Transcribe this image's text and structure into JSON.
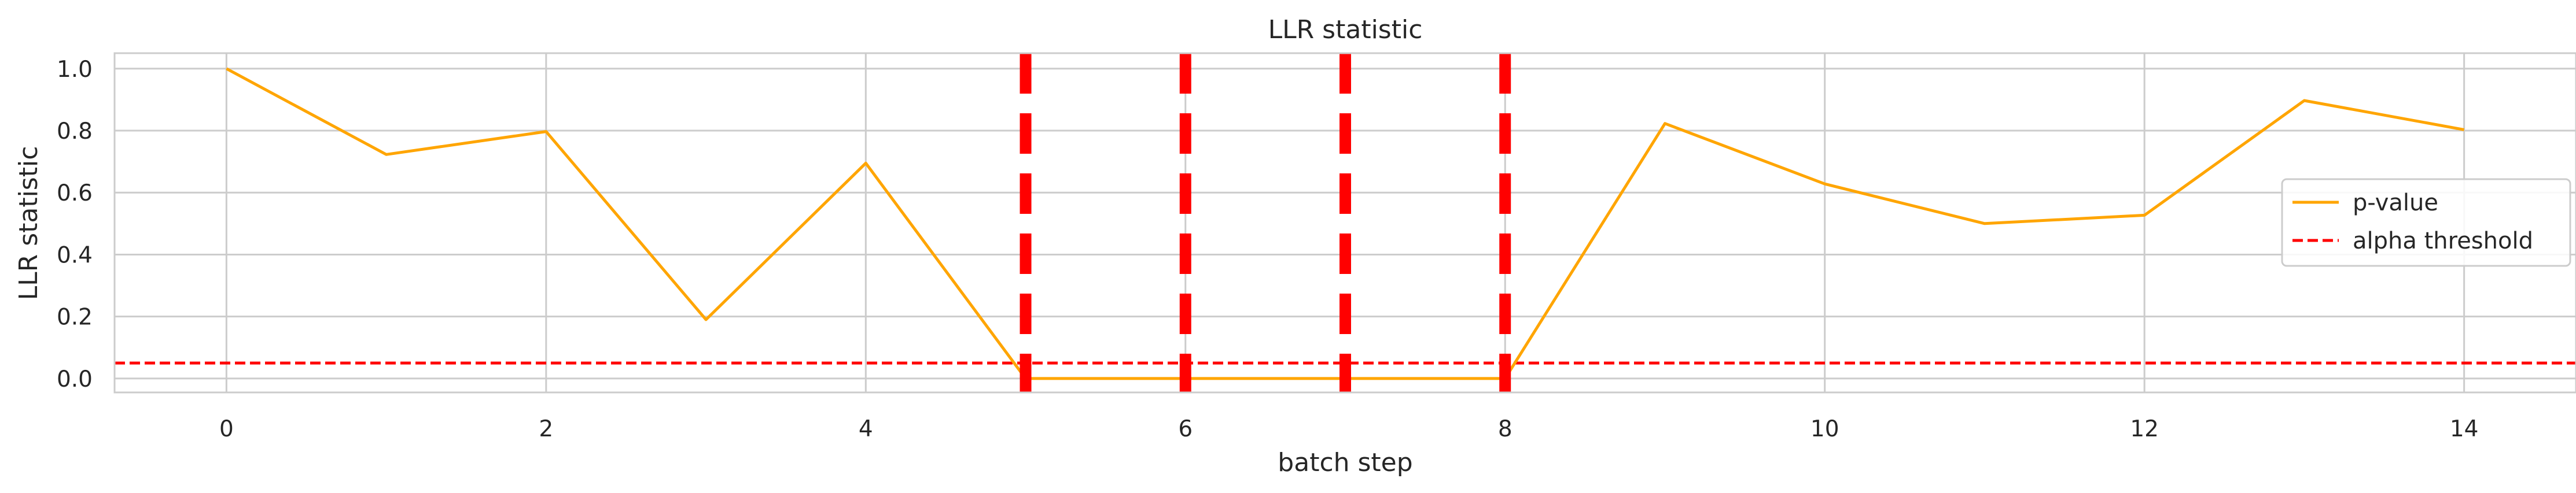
{
  "chart_data": {
    "type": "line",
    "title": "LLR statistic",
    "xlabel": "batch step",
    "ylabel": "LLR statistic",
    "xlim": [
      -0.7,
      14.7
    ],
    "ylim": [
      -0.045,
      1.05
    ],
    "xticks": [
      0,
      2,
      4,
      6,
      8,
      10,
      12,
      14
    ],
    "xtick_labels": [
      "0",
      "2",
      "4",
      "6",
      "8",
      "10",
      "12",
      "14"
    ],
    "yticks": [
      0.0,
      0.2,
      0.4,
      0.6,
      0.8,
      1.0
    ],
    "ytick_labels": [
      "0.0",
      "0.2",
      "0.4",
      "0.6",
      "0.8",
      "1.0"
    ],
    "grid": true,
    "legend_position": "right",
    "series": [
      {
        "name": "p-value",
        "color": "#ffa500",
        "x": [
          0,
          1,
          2,
          3,
          4,
          5,
          6,
          7,
          8,
          9,
          10,
          11,
          12,
          13,
          14
        ],
        "values": [
          1.0,
          0.723,
          0.797,
          0.19,
          0.695,
          0.0,
          0.0,
          0.0,
          0.0,
          0.823,
          0.628,
          0.5,
          0.527,
          0.897,
          0.803
        ]
      }
    ],
    "threshold": {
      "name": "alpha threshold",
      "value": 0.05,
      "color": "#ff0000",
      "style": "dashed"
    },
    "vertical_markers": {
      "x": [
        5,
        6,
        7,
        8
      ],
      "color": "#ff0000",
      "style": "dashed"
    }
  }
}
